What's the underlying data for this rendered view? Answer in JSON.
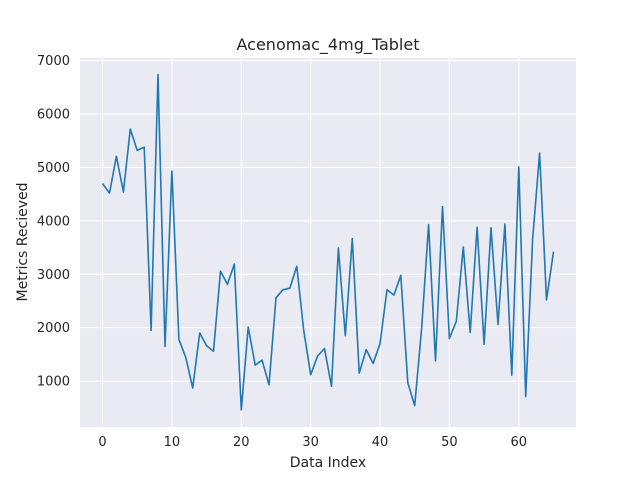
{
  "chart_data": {
    "type": "line",
    "title": "Acenomac_4mg_Tablet",
    "xlabel": "Data Index",
    "ylabel": "Metrics Recieved",
    "xlim": [
      -3.25,
      68.25
    ],
    "ylim": [
      140,
      7050
    ],
    "xticks": [
      0,
      10,
      20,
      30,
      40,
      50,
      60
    ],
    "yticks": [
      1000,
      2000,
      3000,
      4000,
      5000,
      6000,
      7000
    ],
    "grid": true,
    "colors": {
      "background": "#eaeaf2",
      "grid": "#ffffff",
      "line": "#1f77b4",
      "text": "#262626"
    },
    "series": [
      {
        "x": [
          0,
          1,
          2,
          3,
          4,
          5,
          6,
          7,
          8,
          9,
          10,
          11,
          12,
          13,
          14,
          15,
          16,
          17,
          18,
          19,
          20,
          21,
          22,
          23,
          24,
          25,
          26,
          27,
          28,
          29,
          30,
          31,
          32,
          33,
          34,
          35,
          36,
          37,
          38,
          39,
          40,
          41,
          42,
          43,
          44,
          45,
          46,
          47,
          48,
          49,
          50,
          51,
          52,
          53,
          54,
          55,
          56,
          57,
          58,
          59,
          60,
          61,
          62,
          63,
          64,
          65
        ],
        "values": [
          4700,
          4520,
          5210,
          4540,
          5720,
          5320,
          5380,
          1950,
          6740,
          1650,
          4930,
          1780,
          1440,
          870,
          1900,
          1660,
          1560,
          3060,
          2810,
          3190,
          460,
          2010,
          1300,
          1390,
          930,
          2560,
          2710,
          2740,
          3150,
          1950,
          1120,
          1470,
          1610,
          900,
          3490,
          1850,
          3670,
          1150,
          1590,
          1330,
          1700,
          2710,
          2610,
          2980,
          970,
          540,
          2000,
          3930,
          1380,
          4270,
          1800,
          2120,
          3510,
          1910,
          3880,
          1690,
          3870,
          2060,
          3940,
          1110,
          5010,
          710,
          3650,
          5270,
          2520,
          3420
        ]
      }
    ]
  }
}
